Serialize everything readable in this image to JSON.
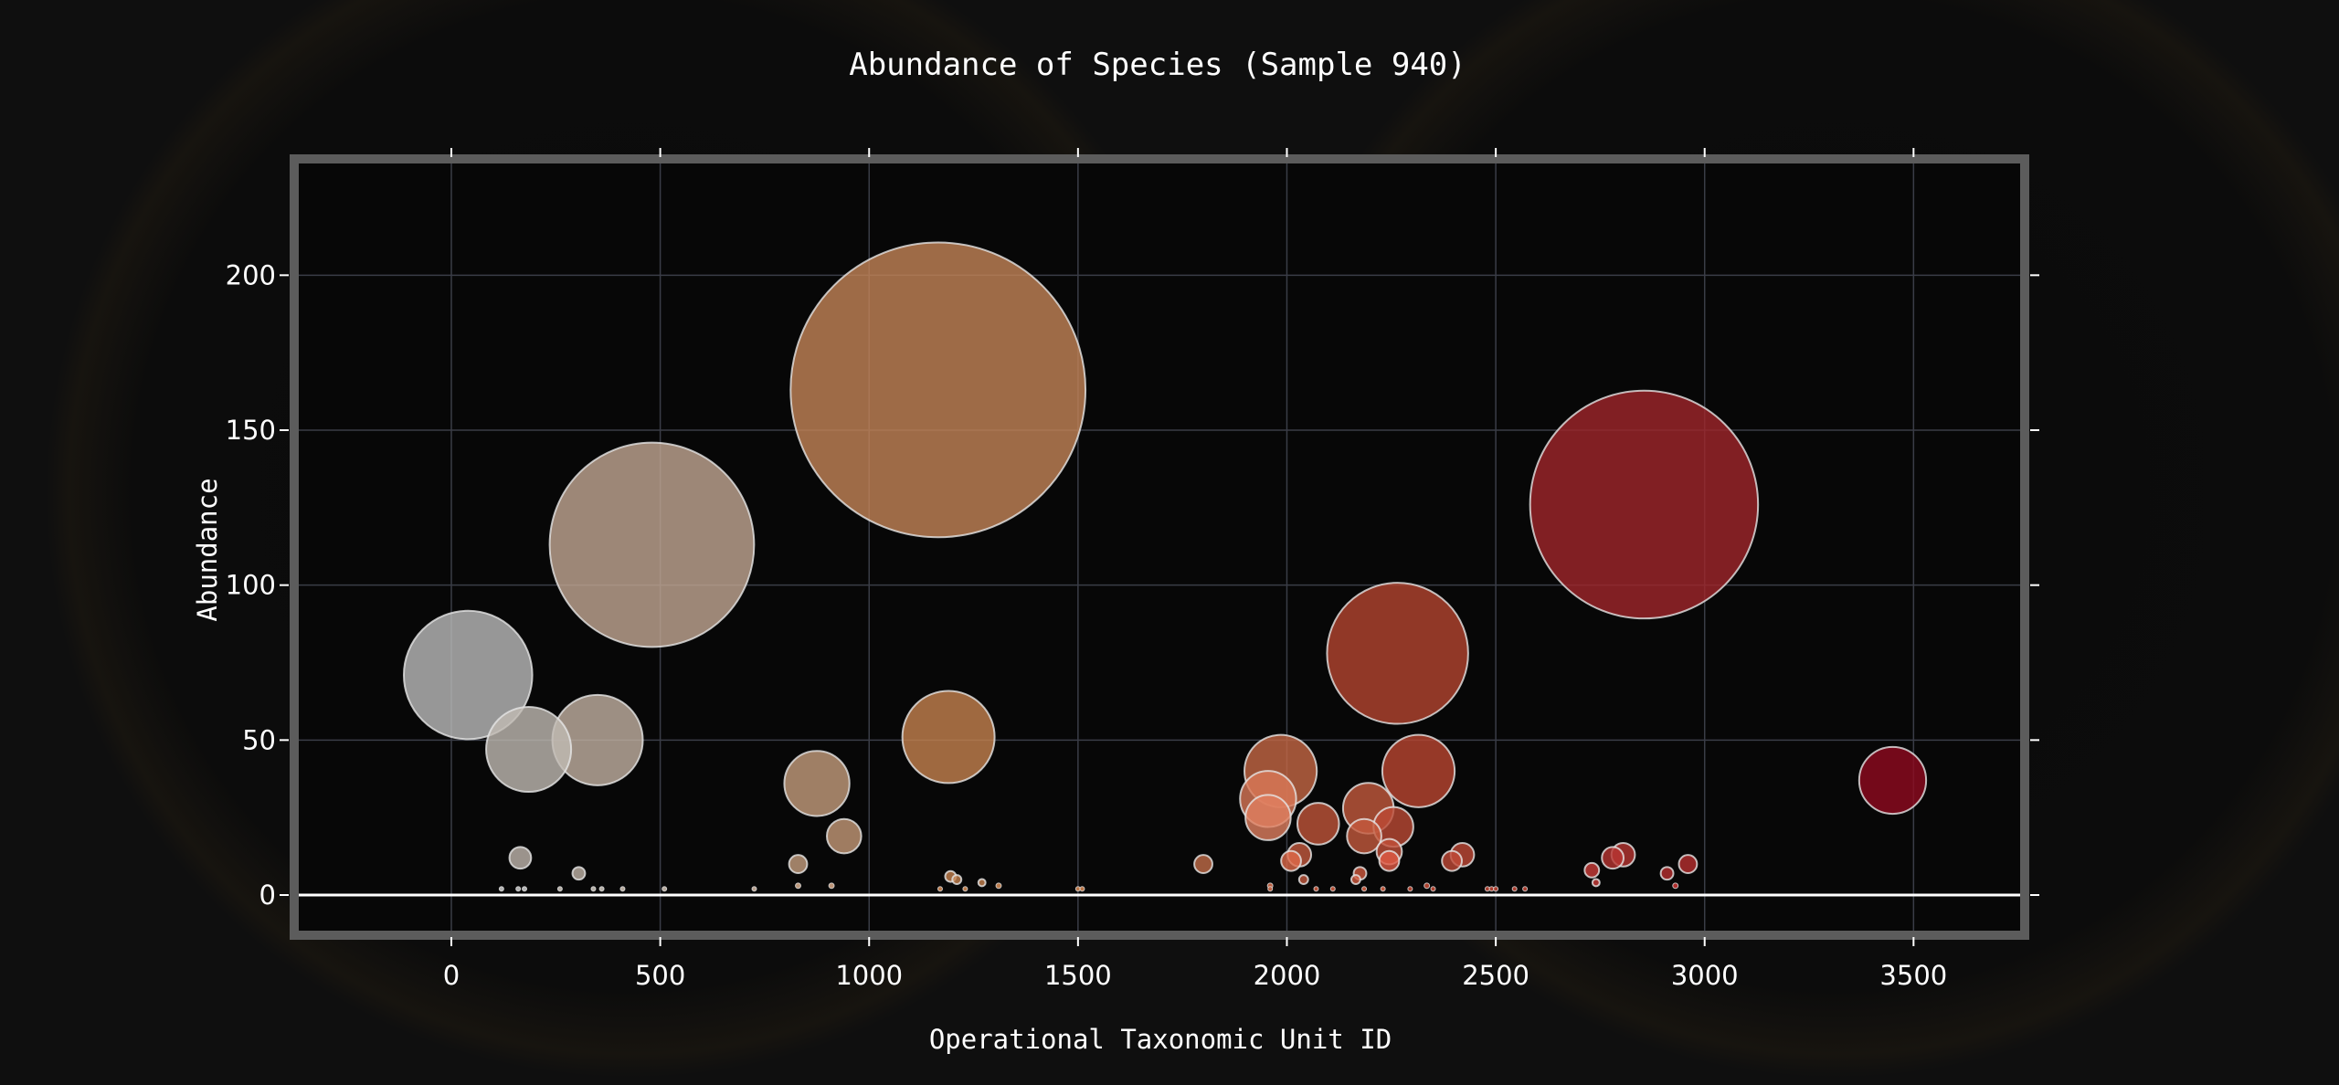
{
  "chart_data": {
    "type": "scatter",
    "subtype": "bubble",
    "title": "Abundance of Species (Sample 940)",
    "xlabel": "Operational Taxonomic Unit ID",
    "ylabel": "Abundance",
    "xlim": [
      -370,
      3760
    ],
    "ylim": [
      -15,
      238
    ],
    "xticks": [
      0,
      500,
      1000,
      1500,
      2000,
      2500,
      3000,
      3500
    ],
    "yticks": [
      0,
      50,
      100,
      150,
      200
    ],
    "grid": true,
    "legend": "none",
    "background": "dark petri-dish photo",
    "colors": {
      "page_bg": "#0f0f0f",
      "plot_bg": "#070707",
      "frame": "#5c5c5c",
      "grid": "#3a3d47",
      "zero_line": "#ffffff",
      "bubble_stroke": "#e6e6e6",
      "colorscale": [
        "#bebebe",
        "#c9a58a",
        "#c67c4b",
        "#b0452e",
        "#8f1818",
        "#7a0012"
      ]
    },
    "points": [
      {
        "x": 40,
        "y": 71,
        "size": 71,
        "color": "#bcbcbc"
      },
      {
        "x": 185,
        "y": 47,
        "size": 47,
        "color": "#c1bab3"
      },
      {
        "x": 350,
        "y": 50,
        "size": 50,
        "color": "#c3b1a2"
      },
      {
        "x": 480,
        "y": 113,
        "size": 113,
        "color": "#c3a793"
      },
      {
        "x": 165,
        "y": 12,
        "size": 12,
        "color": "#c0b7ae"
      },
      {
        "x": 305,
        "y": 7,
        "size": 7,
        "color": "#c0b4a8"
      },
      {
        "x": 120,
        "y": 2,
        "size": 2,
        "color": "#bdbdbd"
      },
      {
        "x": 160,
        "y": 2,
        "size": 2,
        "color": "#bdbdbd"
      },
      {
        "x": 175,
        "y": 2,
        "size": 2,
        "color": "#bdbdbd"
      },
      {
        "x": 260,
        "y": 2,
        "size": 2,
        "color": "#bfb8b0"
      },
      {
        "x": 340,
        "y": 2,
        "size": 2,
        "color": "#bfb8b0"
      },
      {
        "x": 360,
        "y": 2,
        "size": 2,
        "color": "#bfb8b0"
      },
      {
        "x": 410,
        "y": 2,
        "size": 2,
        "color": "#c0b3a6"
      },
      {
        "x": 510,
        "y": 2,
        "size": 2,
        "color": "#c0b3a6"
      },
      {
        "x": 725,
        "y": 2,
        "size": 2,
        "color": "#c2ab98"
      },
      {
        "x": 875,
        "y": 36,
        "size": 36,
        "color": "#c69e7d"
      },
      {
        "x": 940,
        "y": 19,
        "size": 19,
        "color": "#c69a78"
      },
      {
        "x": 830,
        "y": 10,
        "size": 10,
        "color": "#c69f80"
      },
      {
        "x": 830,
        "y": 3,
        "size": 3,
        "color": "#c6a083"
      },
      {
        "x": 910,
        "y": 3,
        "size": 3,
        "color": "#c69c7d"
      },
      {
        "x": 1165,
        "y": 163,
        "size": 163,
        "color": "#c48558"
      },
      {
        "x": 1190,
        "y": 51,
        "size": 51,
        "color": "#c5824f"
      },
      {
        "x": 1195,
        "y": 6,
        "size": 6,
        "color": "#c5824f"
      },
      {
        "x": 1210,
        "y": 5,
        "size": 5,
        "color": "#c5824f"
      },
      {
        "x": 1170,
        "y": 2,
        "size": 2,
        "color": "#c5824f"
      },
      {
        "x": 1230,
        "y": 2,
        "size": 2,
        "color": "#c5824f"
      },
      {
        "x": 1270,
        "y": 4,
        "size": 4,
        "color": "#c5824f"
      },
      {
        "x": 1310,
        "y": 3,
        "size": 3,
        "color": "#c5824f"
      },
      {
        "x": 1500,
        "y": 2,
        "size": 2,
        "color": "#c27a4a"
      },
      {
        "x": 1510,
        "y": 2,
        "size": 2,
        "color": "#c27a4a"
      },
      {
        "x": 1800,
        "y": 10,
        "size": 10,
        "color": "#c26d48"
      },
      {
        "x": 1985,
        "y": 40,
        "size": 40,
        "color": "#c66845"
      },
      {
        "x": 1955,
        "y": 31,
        "size": 31,
        "color": "#d97858"
      },
      {
        "x": 1955,
        "y": 25,
        "size": 25,
        "color": "#e08060"
      },
      {
        "x": 1960,
        "y": 3,
        "size": 3,
        "color": "#c46443"
      },
      {
        "x": 1960,
        "y": 2,
        "size": 2,
        "color": "#c46443"
      },
      {
        "x": 2010,
        "y": 11,
        "size": 11,
        "color": "#df6a4a"
      },
      {
        "x": 2030,
        "y": 13,
        "size": 13,
        "color": "#c45a3e"
      },
      {
        "x": 2040,
        "y": 5,
        "size": 5,
        "color": "#c45a3e"
      },
      {
        "x": 2075,
        "y": 23,
        "size": 23,
        "color": "#c0553a"
      },
      {
        "x": 2070,
        "y": 2,
        "size": 2,
        "color": "#c0553a"
      },
      {
        "x": 2110,
        "y": 2,
        "size": 2,
        "color": "#c0553a"
      },
      {
        "x": 2265,
        "y": 78,
        "size": 78,
        "color": "#b4452f"
      },
      {
        "x": 2195,
        "y": 28,
        "size": 28,
        "color": "#c45a3d"
      },
      {
        "x": 2185,
        "y": 19,
        "size": 19,
        "color": "#c45a3d"
      },
      {
        "x": 2175,
        "y": 7,
        "size": 7,
        "color": "#d15a3f"
      },
      {
        "x": 2165,
        "y": 5,
        "size": 5,
        "color": "#d15a3f"
      },
      {
        "x": 2185,
        "y": 2,
        "size": 2,
        "color": "#c45a3d"
      },
      {
        "x": 2230,
        "y": 2,
        "size": 2,
        "color": "#c45a3d"
      },
      {
        "x": 2245,
        "y": 14,
        "size": 14,
        "color": "#c2503a"
      },
      {
        "x": 2245,
        "y": 11,
        "size": 11,
        "color": "#e05a45"
      },
      {
        "x": 2255,
        "y": 22,
        "size": 22,
        "color": "#bc4a34"
      },
      {
        "x": 2315,
        "y": 40,
        "size": 40,
        "color": "#ba4631"
      },
      {
        "x": 2295,
        "y": 2,
        "size": 2,
        "color": "#b44430"
      },
      {
        "x": 2335,
        "y": 3,
        "size": 3,
        "color": "#b44430"
      },
      {
        "x": 2350,
        "y": 2,
        "size": 2,
        "color": "#b44430"
      },
      {
        "x": 2395,
        "y": 11,
        "size": 11,
        "color": "#c04a37"
      },
      {
        "x": 2420,
        "y": 13,
        "size": 13,
        "color": "#c04a37"
      },
      {
        "x": 2480,
        "y": 2,
        "size": 2,
        "color": "#b04030"
      },
      {
        "x": 2490,
        "y": 2,
        "size": 2,
        "color": "#b04030"
      },
      {
        "x": 2500,
        "y": 2,
        "size": 2,
        "color": "#b04030"
      },
      {
        "x": 2545,
        "y": 2,
        "size": 2,
        "color": "#b04030"
      },
      {
        "x": 2570,
        "y": 2,
        "size": 2,
        "color": "#b04030"
      },
      {
        "x": 2730,
        "y": 8,
        "size": 8,
        "color": "#cc3d3a"
      },
      {
        "x": 2740,
        "y": 4,
        "size": 4,
        "color": "#cc3d3a"
      },
      {
        "x": 2780,
        "y": 12,
        "size": 12,
        "color": "#b83632"
      },
      {
        "x": 2805,
        "y": 13,
        "size": 13,
        "color": "#b83632"
      },
      {
        "x": 2855,
        "y": 126,
        "size": 126,
        "color": "#a0262a"
      },
      {
        "x": 2910,
        "y": 7,
        "size": 7,
        "color": "#b8302f"
      },
      {
        "x": 2930,
        "y": 3,
        "size": 3,
        "color": "#b8302f"
      },
      {
        "x": 2960,
        "y": 10,
        "size": 10,
        "color": "#b8302f"
      },
      {
        "x": 3450,
        "y": 37,
        "size": 37,
        "color": "#900a1f"
      }
    ]
  }
}
